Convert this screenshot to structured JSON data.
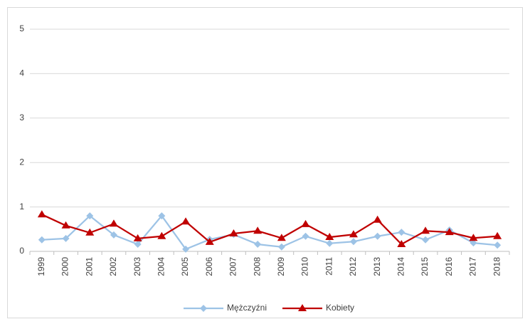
{
  "chart_data": {
    "type": "line",
    "categories": [
      "1999",
      "2000",
      "2001",
      "2002",
      "2003",
      "2004",
      "2005",
      "2006",
      "2007",
      "2008",
      "2009",
      "2010",
      "2011",
      "2012",
      "2013",
      "2014",
      "2015",
      "2016",
      "2017",
      "2018"
    ],
    "series": [
      {
        "name": "Mężczyźni",
        "color": "#9dc3e6",
        "marker": "diamond",
        "values": [
          0.26,
          0.29,
          0.8,
          0.37,
          0.16,
          0.8,
          0.05,
          0.27,
          0.38,
          0.16,
          0.1,
          0.34,
          0.18,
          0.22,
          0.34,
          0.43,
          0.26,
          0.48,
          0.19,
          0.14
        ]
      },
      {
        "name": "Kobiety",
        "color": "#c00000",
        "marker": "triangle",
        "values": [
          0.83,
          0.58,
          0.42,
          0.62,
          0.29,
          0.34,
          0.67,
          0.21,
          0.4,
          0.46,
          0.3,
          0.61,
          0.32,
          0.38,
          0.71,
          0.16,
          0.46,
          0.43,
          0.3,
          0.34
        ]
      }
    ],
    "ylim": [
      0,
      5
    ],
    "yticks": [
      0,
      1,
      2,
      3,
      4,
      5
    ],
    "grid": true,
    "legend": "bottom"
  }
}
